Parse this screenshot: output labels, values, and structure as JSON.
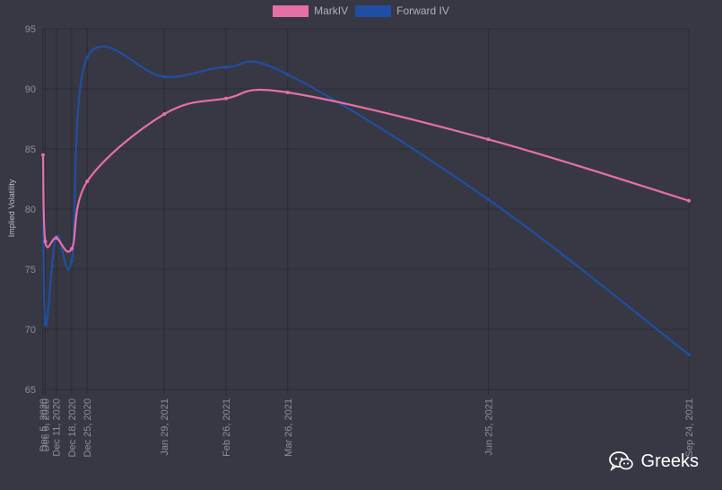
{
  "chart_data": {
    "type": "line",
    "title": "",
    "xlabel": "",
    "ylabel": "Implied Volatility",
    "ylim": [
      65,
      95
    ],
    "yticks": [
      65,
      70,
      75,
      80,
      85,
      90,
      95
    ],
    "x_ticks": [
      "Dec 5, 2020",
      "Dec 6, 2020",
      "Dec 11, 2020",
      "Dec 18, 2020",
      "Dec 25, 2020",
      "Jan 29, 2021",
      "Feb 26, 2021",
      "Mar 26, 2021",
      "Jun 25, 2021",
      "Sep 24, 2021"
    ],
    "x_dates": [
      "2020-12-05",
      "2020-12-06",
      "2020-12-11",
      "2020-12-18",
      "2020-12-25",
      "2021-01-29",
      "2021-02-26",
      "2021-03-26",
      "2021-06-25",
      "2021-09-24"
    ],
    "grid": true,
    "legend_position": "top-center",
    "series": [
      {
        "name": "MarkIV",
        "color": "#e66fa8",
        "values": [
          84.5,
          77.3,
          77.6,
          76.7,
          82.3,
          87.9,
          89.2,
          89.7,
          85.8,
          80.7
        ]
      },
      {
        "name": "Forward IV",
        "color": "#1f4fa3",
        "values": [
          84.5,
          70.4,
          77.7,
          75.7,
          92.6,
          91.0,
          91.8,
          91.2,
          80.8,
          67.9
        ]
      }
    ]
  },
  "watermark": {
    "text": "Greeks",
    "icon": "wechat-icon"
  }
}
